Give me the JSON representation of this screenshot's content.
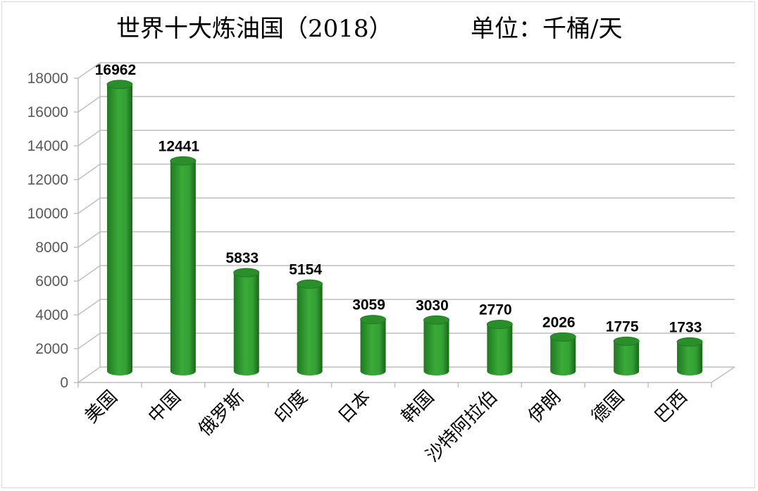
{
  "chart_data": {
    "type": "bar",
    "style": "3d-cylinder",
    "title": "世界十大炼油国（2018）",
    "unit": "单位：千桶/天",
    "categories": [
      "美国",
      "中国",
      "俄罗斯",
      "印度",
      "日本",
      "韩国",
      "沙特阿拉伯",
      "伊朗",
      "德国",
      "巴西"
    ],
    "values": [
      16962,
      12441,
      5833,
      5154,
      3059,
      3030,
      2770,
      2026,
      1775,
      1733
    ],
    "ylim": [
      0,
      18000
    ],
    "yticks": [
      "0",
      "2000",
      "4000",
      "6000",
      "8000",
      "10000",
      "12000",
      "14000",
      "16000",
      "18000"
    ],
    "grid": true,
    "legend": "none",
    "colors": {
      "bar": "#2e9a2e",
      "bar_dark": "#1c6b1c",
      "bar_light": "#4cc04c",
      "grid": "#bfbfbf"
    }
  }
}
